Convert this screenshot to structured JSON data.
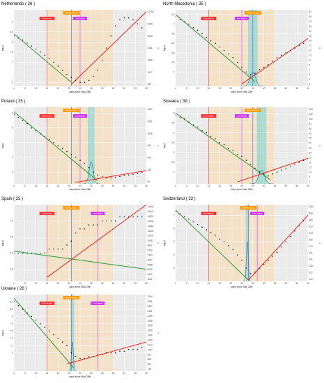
{
  "shared": {
    "xlabel": "days since May 28th",
    "ylabel_left": "log(c)",
    "ylabel_right": "c",
    "first_match_label": "First Match",
    "last_match_label": "Last Match",
    "middle_label": "Middle Match",
    "x_ticks": [
      0,
      5,
      10,
      15,
      20,
      25,
      30,
      35,
      40,
      45,
      50,
      55,
      60
    ],
    "colors": {
      "band": "#f5dfc2",
      "panel_bg": "#ebebeb",
      "grid": "#ffffff",
      "first_match": "#ff3333",
      "last_match": "#cc33ff",
      "middle_match": "#ff9900",
      "center": "#3366ff",
      "peak": "#3a8fb0",
      "peak_band": "#7fd6d6",
      "decline": "#339933",
      "rise": "#ee2222",
      "points": "#000000"
    }
  },
  "chart_data": [
    {
      "type": "scatter",
      "title": "Netherlands ( 26 )",
      "first_match": 15,
      "middle_match": 26,
      "last_match": 30,
      "band": [
        15,
        45
      ],
      "ylim": [
        5.8,
        9.6
      ],
      "yticks_left": [
        6,
        7,
        7.5,
        8,
        8.5,
        9
      ],
      "yticks_right": [
        "12750",
        "8103",
        "4915",
        "2981",
        "1808",
        "1097",
        "665"
      ],
      "x": [
        0,
        2,
        4,
        6,
        8,
        10,
        12,
        14,
        16,
        18,
        20,
        22,
        24,
        26,
        28,
        30,
        32,
        34,
        36,
        38,
        40,
        42,
        44,
        46,
        48,
        50,
        52,
        54,
        56,
        58
      ],
      "y": [
        8.3,
        8.2,
        8.1,
        7.95,
        7.8,
        7.65,
        7.5,
        7.35,
        7.2,
        7.0,
        6.8,
        6.6,
        6.4,
        6.25,
        6.1,
        6.0,
        6.0,
        6.1,
        6.3,
        6.6,
        7.1,
        7.7,
        8.3,
        8.8,
        9.1,
        9.2,
        9.2,
        9.1,
        8.9,
        8.7
      ],
      "decline": [
        [
          0,
          8.4
        ],
        [
          26,
          6.0
        ]
      ],
      "rise": [
        [
          26,
          5.9
        ],
        [
          60,
          9.5
        ]
      ],
      "peak": null
    },
    {
      "type": "scatter",
      "title": "North Macedonia ( 35 )",
      "first_match": 15,
      "middle_match": 35,
      "last_match": 30,
      "band": [
        15,
        45
      ],
      "ylim": [
        1.4,
        4.6
      ],
      "yticks_left": [
        2,
        2.4,
        2.8,
        3.2,
        3.6,
        4,
        4.4
      ],
      "yticks_right": [
        "81",
        "66",
        "54",
        "45",
        "37",
        "30",
        "24",
        "20",
        "16",
        "13",
        "11",
        "9",
        "7",
        "6",
        "5",
        "4"
      ],
      "x": [
        0,
        2,
        4,
        6,
        8,
        10,
        12,
        14,
        16,
        18,
        20,
        22,
        24,
        26,
        28,
        30,
        32,
        34,
        36,
        38,
        40,
        42,
        44,
        46,
        48,
        50,
        52,
        54,
        56,
        58
      ],
      "y": [
        4.3,
        4.2,
        4.1,
        4.0,
        3.85,
        3.75,
        3.6,
        3.45,
        3.3,
        3.2,
        3.05,
        2.9,
        2.75,
        2.6,
        2.4,
        2.2,
        2.0,
        1.9,
        1.95,
        2.1,
        2.2,
        2.3,
        2.45,
        2.6,
        2.7,
        2.8,
        2.9,
        3.0,
        3.1,
        3.2
      ],
      "decline": [
        [
          0,
          4.4
        ],
        [
          36,
          1.6
        ]
      ],
      "rise": [
        [
          30,
          1.5
        ],
        [
          60,
          3.4
        ]
      ],
      "peak": {
        "x": 35,
        "spread": 1.8,
        "amp": 0.6
      }
    },
    {
      "type": "scatter",
      "title": "Poland ( 35 )",
      "first_match": 15,
      "middle_match": 26,
      "last_match": 30,
      "band": [
        15,
        45
      ],
      "ylim": [
        4.2,
        9.4
      ],
      "yticks_left": [
        5,
        6,
        7,
        8,
        9
      ],
      "yticks_right": [
        "4447",
        "2981",
        "1808",
        "665",
        "403",
        "148",
        "90"
      ],
      "x": [
        0,
        2,
        4,
        6,
        8,
        10,
        12,
        14,
        16,
        18,
        20,
        22,
        24,
        26,
        28,
        30,
        32,
        34,
        36,
        38,
        40,
        42,
        44,
        46,
        48,
        50,
        52,
        54,
        56,
        58
      ],
      "y": [
        8.9,
        8.7,
        8.5,
        8.3,
        8.0,
        7.8,
        7.6,
        7.4,
        7.2,
        7.0,
        6.8,
        6.6,
        6.4,
        6.2,
        6.0,
        5.8,
        5.6,
        5.3,
        5.0,
        4.8,
        4.7,
        4.6,
        4.6,
        4.65,
        4.7,
        4.75,
        4.8,
        4.85,
        4.9,
        5.0
      ],
      "decline": [
        [
          0,
          9.1
        ],
        [
          38,
          4.4
        ]
      ],
      "rise": [
        [
          28,
          4.3
        ],
        [
          60,
          5.1
        ]
      ],
      "peak": {
        "x": 35,
        "spread": 1.3,
        "amp": 1.5
      }
    },
    {
      "type": "scatter",
      "title": "Slovakia ( 39 )",
      "first_match": 15,
      "middle_match": 35,
      "last_match": 30,
      "band": [
        15,
        45
      ],
      "ylim": [
        1.4,
        5.3
      ],
      "yticks_left": [
        2,
        2.5,
        3,
        3.5,
        4,
        4.5,
        5
      ],
      "yticks_right": [
        "148",
        "122",
        "100",
        "81",
        "66",
        "54",
        "45",
        "37",
        "30",
        "24",
        "20",
        "16",
        "13",
        "11",
        "9",
        "7"
      ],
      "x": [
        0,
        2,
        4,
        6,
        8,
        10,
        12,
        14,
        16,
        18,
        20,
        22,
        24,
        26,
        28,
        30,
        32,
        34,
        36,
        38,
        40,
        42,
        44,
        46,
        48,
        50,
        52,
        54,
        56,
        58
      ],
      "y": [
        4.9,
        4.8,
        4.7,
        4.55,
        4.4,
        4.3,
        4.1,
        4.0,
        3.8,
        3.7,
        3.5,
        3.4,
        3.2,
        3.1,
        2.9,
        2.8,
        2.6,
        2.4,
        2.2,
        2.0,
        1.9,
        1.8,
        1.9,
        2.0,
        2.1,
        2.2,
        2.3,
        2.4,
        2.5,
        2.6
      ],
      "decline": [
        [
          0,
          5.0
        ],
        [
          43,
          1.6
        ]
      ],
      "rise": [
        [
          28,
          1.5
        ],
        [
          60,
          2.7
        ]
      ],
      "peak": {
        "x": 39,
        "spread": 1.8,
        "amp": 0.7
      }
    },
    {
      "type": "scatter",
      "title": "Spain ( 25 )",
      "first_match": 15,
      "middle_match": 26,
      "last_match": 38,
      "band": [
        15,
        45
      ],
      "ylim": [
        8.5,
        10.4
      ],
      "yticks_left": [
        8.8,
        9.2,
        9.6,
        10
      ],
      "yticks_right": [
        "22693",
        "20537",
        "18304",
        "16534",
        "14952",
        "13532",
        "12247",
        "10812",
        "9897",
        "8103",
        "7333",
        "6637",
        "6006",
        "5432",
        "4447",
        "3641"
      ],
      "x": [
        0,
        2,
        4,
        6,
        8,
        10,
        12,
        14,
        16,
        18,
        20,
        22,
        24,
        26,
        28,
        30,
        32,
        34,
        36,
        38,
        40,
        42,
        44,
        46,
        48,
        50,
        52,
        54,
        56,
        58
      ],
      "y": [
        9.2,
        9.2,
        9.2,
        9.2,
        9.2,
        9.2,
        9.2,
        9.2,
        9.3,
        9.3,
        9.3,
        9.3,
        9.4,
        9.5,
        9.7,
        9.8,
        9.8,
        9.9,
        9.9,
        9.9,
        10.0,
        10.0,
        10.0,
        10.0,
        10.1,
        10.1,
        10.1,
        10.1,
        10.1,
        10.1
      ],
      "decline": [
        [
          0,
          9.25
        ],
        [
          60,
          8.8
        ]
      ],
      "rise": [
        [
          15,
          8.6
        ],
        [
          60,
          10.4
        ]
      ],
      "peak": null
    },
    {
      "type": "scatter",
      "title": "Switzerland ( 33 )",
      "first_match": 15,
      "middle_match": 33,
      "last_match": 37,
      "band": [
        15,
        45
      ],
      "ylim": [
        2.0,
        7.8
      ],
      "yticks_left": [
        3,
        4,
        5,
        6,
        7
      ],
      "yticks_right": [
        "1997",
        "898",
        "665",
        "493",
        "403",
        "330",
        "270",
        "221",
        "181",
        "148",
        "122",
        "100"
      ],
      "x": [
        0,
        2,
        4,
        6,
        8,
        10,
        12,
        14,
        16,
        18,
        20,
        22,
        24,
        26,
        28,
        30,
        32,
        34,
        36,
        38,
        40,
        42,
        44,
        46,
        48,
        50,
        52,
        54,
        56,
        58
      ],
      "y": [
        7.3,
        7.1,
        6.9,
        6.7,
        6.5,
        6.3,
        6.1,
        5.9,
        5.7,
        5.5,
        5.2,
        5.0,
        4.7,
        4.4,
        4.0,
        3.6,
        3.0,
        2.6,
        2.7,
        3.0,
        3.3,
        3.6,
        3.9,
        4.2,
        4.6,
        5.0,
        5.4,
        5.8,
        6.2,
        6.6
      ],
      "decline": [
        [
          0,
          7.4
        ],
        [
          33,
          2.1
        ]
      ],
      "rise": [
        [
          33,
          2.1
        ],
        [
          60,
          7.0
        ]
      ],
      "peak": {
        "x": 32.5,
        "spread": 0.6,
        "amp": 3.0
      }
    },
    {
      "type": "scatter",
      "title": "Ukraine ( 26 )",
      "first_match": 15,
      "middle_match": 26,
      "last_match": 38,
      "band": [
        15,
        45
      ],
      "ylim": [
        6.5,
        8.6
      ],
      "yticks_left": [
        7,
        7.2,
        7.4,
        7.6,
        7.8,
        8,
        8.2,
        8.4
      ],
      "yticks_right": [
        "3294",
        "2981",
        "2697",
        "2441",
        "2208",
        "1998",
        "1808",
        "1636",
        "1480",
        "1339",
        "1212",
        "1097",
        "992",
        "898",
        "812",
        "735"
      ],
      "x": [
        0,
        2,
        4,
        6,
        8,
        10,
        12,
        14,
        16,
        18,
        20,
        22,
        24,
        26,
        28,
        30,
        32,
        34,
        36,
        38,
        40,
        42,
        44,
        46,
        48,
        50,
        52,
        54,
        56,
        58
      ],
      "y": [
        8.4,
        8.3,
        8.2,
        8.1,
        8.0,
        7.9,
        7.8,
        7.7,
        7.6,
        7.5,
        7.4,
        7.3,
        7.2,
        7.0,
        6.9,
        6.85,
        6.85,
        6.9,
        6.9,
        6.95,
        6.95,
        7.0,
        7.0,
        7.0,
        7.05,
        7.05,
        7.1,
        7.1,
        7.1,
        7.15
      ],
      "decline": [
        [
          0,
          8.5
        ],
        [
          27,
          6.6
        ]
      ],
      "rise": [
        [
          24,
          6.7
        ],
        [
          60,
          7.3
        ]
      ],
      "peak": {
        "x": 26.5,
        "spread": 0.6,
        "amp": 0.8
      }
    }
  ]
}
